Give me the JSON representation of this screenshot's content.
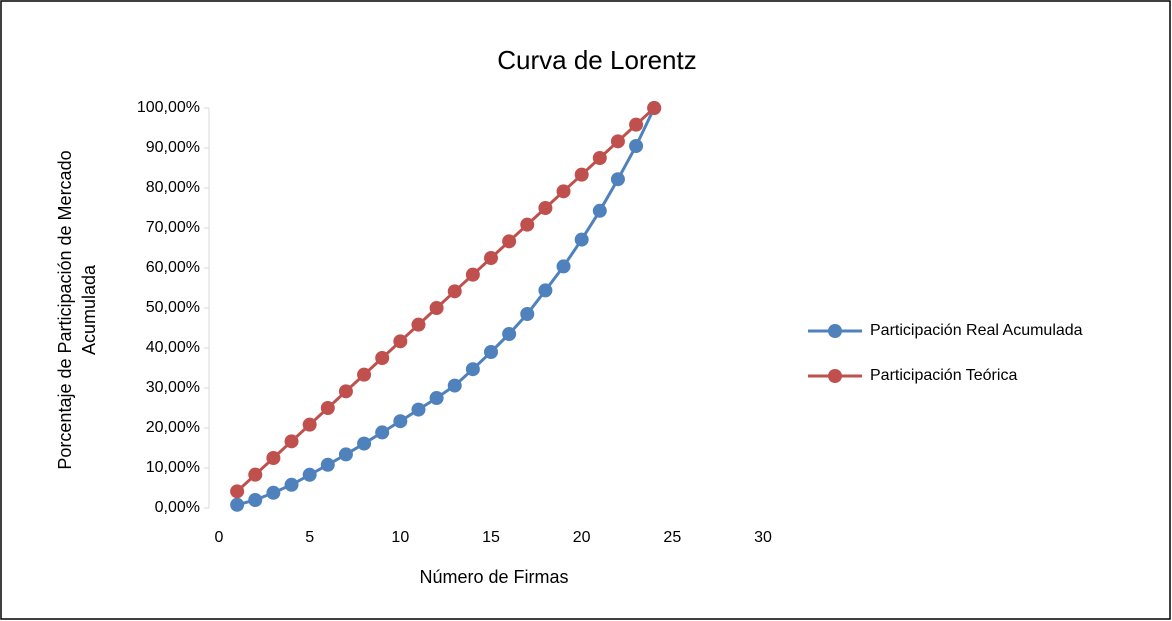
{
  "chart_data": {
    "type": "line",
    "title": "Curva de Lorentz",
    "xlabel": "Número de Firmas",
    "ylabel": [
      "Porcentaje de Participación de Mercado",
      "Acumulada"
    ],
    "x": [
      1,
      2,
      3,
      4,
      5,
      6,
      7,
      8,
      9,
      10,
      11,
      12,
      13,
      14,
      15,
      16,
      17,
      18,
      19,
      20,
      21,
      22,
      23,
      24
    ],
    "series": [
      {
        "name": "Participación Real Acumulada",
        "color": "#4f81bd",
        "values": [
          0.8,
          2,
          3.8,
          5.8,
          8.3,
          10.8,
          13.4,
          16.1,
          18.9,
          21.7,
          24.6,
          27.5,
          30.6,
          34.7,
          39,
          43.5,
          48.5,
          54.4,
          60.4,
          67.1,
          74.3,
          82.2,
          90.5,
          100
        ]
      },
      {
        "name": "Participación Teórica",
        "color": "#c0504d",
        "values": [
          4.17,
          8.33,
          12.5,
          16.67,
          20.83,
          25,
          29.17,
          33.33,
          37.5,
          41.67,
          45.83,
          50,
          54.17,
          58.33,
          62.5,
          66.67,
          70.83,
          75,
          79.17,
          83.33,
          87.5,
          91.67,
          95.83,
          100
        ]
      }
    ],
    "xlim": [
      0,
      30
    ],
    "xticks": [
      0,
      5,
      10,
      15,
      20,
      25,
      30
    ],
    "ylim": [
      0,
      100
    ],
    "yticks": [
      {
        "value": 0,
        "label": "0,00%"
      },
      {
        "value": 10,
        "label": "10,00%"
      },
      {
        "value": 20,
        "label": "20,00%"
      },
      {
        "value": 30,
        "label": "30,00%"
      },
      {
        "value": 40,
        "label": "40,00%"
      },
      {
        "value": 50,
        "label": "50,00%"
      },
      {
        "value": 60,
        "label": "60,00%"
      },
      {
        "value": 70,
        "label": "70,00%"
      },
      {
        "value": 80,
        "label": "80,00%"
      },
      {
        "value": 90,
        "label": "90,00%"
      },
      {
        "value": 100,
        "label": "100,00%"
      }
    ],
    "grid": false,
    "legend": "right"
  }
}
